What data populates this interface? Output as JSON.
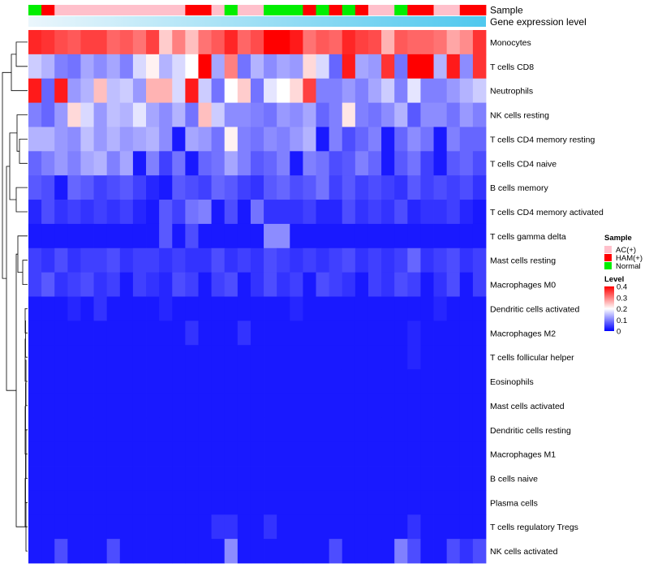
{
  "chart_data": {
    "type": "heatmap",
    "title": "",
    "annotation_rows": [
      {
        "label": "Sample",
        "type": "categorical"
      },
      {
        "label": "Gene expression level",
        "type": "gradient"
      }
    ],
    "sample_groups": [
      "N",
      "H",
      "A",
      "A",
      "A",
      "A",
      "A",
      "A",
      "A",
      "A",
      "A",
      "A",
      "H",
      "H",
      "A",
      "N",
      "A",
      "A",
      "N",
      "N",
      "N",
      "H",
      "N",
      "H",
      "N",
      "H",
      "A",
      "A",
      "N",
      "H",
      "H",
      "A",
      "A",
      "H",
      "H"
    ],
    "rows": [
      "Monocytes",
      "T cells CD8",
      "Neutrophils",
      "NK cells resting",
      "T cells CD4 memory resting",
      "T cells CD4 naive",
      "B cells memory",
      "T cells CD4 memory activated",
      "T cells gamma delta",
      "Mast cells resting",
      "Macrophages M0",
      "Dendritic cells activated",
      "Macrophages M2",
      "T cells follicular helper",
      "Eosinophils",
      "Mast cells activated",
      "Dendritic cells resting",
      "Macrophages M1",
      "B cells naive",
      "Plasma cells",
      "T cells regulatory  Tregs",
      "NK cells activated"
    ],
    "values": [
      [
        0.37,
        0.36,
        0.34,
        0.33,
        0.35,
        0.35,
        0.32,
        0.33,
        0.31,
        0.35,
        0.24,
        0.3,
        0.25,
        0.31,
        0.33,
        0.37,
        0.32,
        0.34,
        0.4,
        0.4,
        0.38,
        0.31,
        0.33,
        0.32,
        0.37,
        0.35,
        0.34,
        0.26,
        0.33,
        0.32,
        0.32,
        0.31,
        0.27,
        0.29,
        0.36
      ],
      [
        0.16,
        0.14,
        0.1,
        0.09,
        0.13,
        0.11,
        0.13,
        0.1,
        0.17,
        0.21,
        0.14,
        0.17,
        0.2,
        0.4,
        0.13,
        0.3,
        0.09,
        0.14,
        0.11,
        0.13,
        0.12,
        0.23,
        0.17,
        0.08,
        0.38,
        0.13,
        0.12,
        0.36,
        0.09,
        0.4,
        0.4,
        0.14,
        0.38,
        0.11,
        0.36
      ],
      [
        0.38,
        0.08,
        0.38,
        0.12,
        0.14,
        0.25,
        0.15,
        0.16,
        0.12,
        0.26,
        0.26,
        0.17,
        0.38,
        0.16,
        0.09,
        0.2,
        0.24,
        0.09,
        0.18,
        0.2,
        0.23,
        0.35,
        0.1,
        0.1,
        0.12,
        0.1,
        0.13,
        0.16,
        0.1,
        0.18,
        0.1,
        0.1,
        0.12,
        0.14,
        0.16
      ],
      [
        0.1,
        0.08,
        0.12,
        0.23,
        0.17,
        0.12,
        0.15,
        0.14,
        0.18,
        0.13,
        0.11,
        0.14,
        0.09,
        0.25,
        0.16,
        0.11,
        0.11,
        0.1,
        0.09,
        0.12,
        0.11,
        0.13,
        0.08,
        0.1,
        0.22,
        0.1,
        0.09,
        0.11,
        0.14,
        0.07,
        0.11,
        0.11,
        0.09,
        0.12,
        0.1
      ],
      [
        0.14,
        0.14,
        0.12,
        0.11,
        0.15,
        0.12,
        0.14,
        0.12,
        0.13,
        0.14,
        0.11,
        0.02,
        0.13,
        0.12,
        0.09,
        0.21,
        0.1,
        0.09,
        0.11,
        0.1,
        0.12,
        0.14,
        0.02,
        0.1,
        0.06,
        0.08,
        0.1,
        0.02,
        0.08,
        0.11,
        0.09,
        0.02,
        0.1,
        0.08,
        0.08
      ],
      [
        0.08,
        0.1,
        0.12,
        0.1,
        0.13,
        0.14,
        0.1,
        0.13,
        0.02,
        0.1,
        0.05,
        0.09,
        0.02,
        0.08,
        0.09,
        0.13,
        0.1,
        0.07,
        0.08,
        0.1,
        0.02,
        0.1,
        0.09,
        0.06,
        0.07,
        0.1,
        0.08,
        0.02,
        0.07,
        0.09,
        0.05,
        0.02,
        0.07,
        0.08,
        0.06
      ],
      [
        0.07,
        0.06,
        0.02,
        0.08,
        0.07,
        0.05,
        0.06,
        0.07,
        0.05,
        0.03,
        0.02,
        0.07,
        0.06,
        0.05,
        0.08,
        0.07,
        0.05,
        0.04,
        0.07,
        0.08,
        0.06,
        0.07,
        0.09,
        0.05,
        0.07,
        0.05,
        0.06,
        0.05,
        0.04,
        0.07,
        0.05,
        0.06,
        0.05,
        0.06,
        0.04
      ],
      [
        0.03,
        0.06,
        0.04,
        0.05,
        0.04,
        0.05,
        0.04,
        0.05,
        0.03,
        0.02,
        0.07,
        0.05,
        0.09,
        0.1,
        0.02,
        0.06,
        0.02,
        0.09,
        0.04,
        0.04,
        0.04,
        0.05,
        0.03,
        0.03,
        0.06,
        0.04,
        0.05,
        0.04,
        0.06,
        0.03,
        0.04,
        0.04,
        0.05,
        0.03,
        0.02
      ],
      [
        0.02,
        0.02,
        0.02,
        0.02,
        0.02,
        0.02,
        0.02,
        0.02,
        0.02,
        0.02,
        0.07,
        0.02,
        0.06,
        0.02,
        0.02,
        0.02,
        0.02,
        0.02,
        0.11,
        0.11,
        0.02,
        0.02,
        0.02,
        0.02,
        0.02,
        0.02,
        0.02,
        0.02,
        0.02,
        0.02,
        0.02,
        0.02,
        0.02,
        0.02,
        0.02
      ],
      [
        0.05,
        0.04,
        0.06,
        0.04,
        0.05,
        0.05,
        0.06,
        0.04,
        0.05,
        0.05,
        0.04,
        0.05,
        0.04,
        0.04,
        0.06,
        0.04,
        0.05,
        0.04,
        0.06,
        0.05,
        0.04,
        0.05,
        0.04,
        0.05,
        0.06,
        0.04,
        0.05,
        0.04,
        0.05,
        0.08,
        0.04,
        0.05,
        0.06,
        0.04,
        0.05
      ],
      [
        0.05,
        0.07,
        0.04,
        0.05,
        0.06,
        0.04,
        0.05,
        0.02,
        0.05,
        0.04,
        0.03,
        0.06,
        0.05,
        0.02,
        0.05,
        0.06,
        0.02,
        0.04,
        0.06,
        0.04,
        0.05,
        0.02,
        0.06,
        0.05,
        0.04,
        0.02,
        0.05,
        0.04,
        0.06,
        0.05,
        0.02,
        0.04,
        0.06,
        0.02,
        0.05
      ],
      [
        0.02,
        0.02,
        0.02,
        0.03,
        0.02,
        0.04,
        0.02,
        0.02,
        0.02,
        0.02,
        0.03,
        0.02,
        0.02,
        0.02,
        0.02,
        0.02,
        0.02,
        0.02,
        0.02,
        0.02,
        0.03,
        0.02,
        0.02,
        0.02,
        0.02,
        0.02,
        0.02,
        0.02,
        0.02,
        0.02,
        0.02,
        0.03,
        0.02,
        0.02,
        0.02
      ],
      [
        0.02,
        0.02,
        0.02,
        0.02,
        0.02,
        0.02,
        0.02,
        0.02,
        0.02,
        0.02,
        0.02,
        0.02,
        0.04,
        0.02,
        0.02,
        0.02,
        0.04,
        0.02,
        0.02,
        0.02,
        0.02,
        0.02,
        0.02,
        0.02,
        0.02,
        0.02,
        0.02,
        0.02,
        0.02,
        0.03,
        0.02,
        0.02,
        0.02,
        0.02,
        0.02
      ],
      [
        0.02,
        0.02,
        0.02,
        0.02,
        0.02,
        0.02,
        0.02,
        0.02,
        0.02,
        0.02,
        0.02,
        0.02,
        0.02,
        0.02,
        0.02,
        0.02,
        0.02,
        0.02,
        0.02,
        0.02,
        0.02,
        0.02,
        0.02,
        0.02,
        0.02,
        0.02,
        0.02,
        0.02,
        0.02,
        0.03,
        0.02,
        0.02,
        0.02,
        0.02,
        0.02
      ],
      [
        0.02,
        0.02,
        0.02,
        0.02,
        0.02,
        0.02,
        0.02,
        0.02,
        0.02,
        0.02,
        0.02,
        0.02,
        0.02,
        0.02,
        0.02,
        0.02,
        0.02,
        0.02,
        0.02,
        0.02,
        0.02,
        0.02,
        0.02,
        0.02,
        0.02,
        0.02,
        0.02,
        0.02,
        0.02,
        0.02,
        0.02,
        0.02,
        0.02,
        0.02,
        0.02
      ],
      [
        0.02,
        0.02,
        0.02,
        0.02,
        0.02,
        0.02,
        0.02,
        0.02,
        0.02,
        0.02,
        0.02,
        0.02,
        0.02,
        0.02,
        0.02,
        0.02,
        0.02,
        0.02,
        0.02,
        0.02,
        0.02,
        0.02,
        0.02,
        0.02,
        0.02,
        0.02,
        0.02,
        0.02,
        0.02,
        0.02,
        0.02,
        0.02,
        0.02,
        0.02,
        0.02
      ],
      [
        0.02,
        0.02,
        0.02,
        0.02,
        0.02,
        0.02,
        0.02,
        0.02,
        0.02,
        0.02,
        0.02,
        0.02,
        0.02,
        0.02,
        0.02,
        0.02,
        0.02,
        0.02,
        0.02,
        0.02,
        0.02,
        0.02,
        0.02,
        0.02,
        0.02,
        0.02,
        0.02,
        0.02,
        0.02,
        0.02,
        0.02,
        0.02,
        0.02,
        0.02,
        0.02
      ],
      [
        0.02,
        0.02,
        0.02,
        0.02,
        0.02,
        0.02,
        0.02,
        0.02,
        0.02,
        0.02,
        0.02,
        0.02,
        0.02,
        0.02,
        0.02,
        0.02,
        0.02,
        0.02,
        0.02,
        0.02,
        0.02,
        0.02,
        0.02,
        0.02,
        0.02,
        0.02,
        0.02,
        0.02,
        0.02,
        0.02,
        0.02,
        0.02,
        0.02,
        0.02,
        0.02
      ],
      [
        0.02,
        0.02,
        0.02,
        0.02,
        0.02,
        0.02,
        0.02,
        0.02,
        0.02,
        0.02,
        0.02,
        0.02,
        0.02,
        0.02,
        0.02,
        0.02,
        0.02,
        0.02,
        0.02,
        0.02,
        0.02,
        0.02,
        0.02,
        0.02,
        0.02,
        0.02,
        0.02,
        0.02,
        0.02,
        0.02,
        0.02,
        0.02,
        0.02,
        0.02,
        0.02
      ],
      [
        0.02,
        0.02,
        0.02,
        0.02,
        0.02,
        0.02,
        0.02,
        0.02,
        0.02,
        0.02,
        0.02,
        0.02,
        0.02,
        0.02,
        0.02,
        0.02,
        0.02,
        0.02,
        0.02,
        0.02,
        0.02,
        0.02,
        0.02,
        0.02,
        0.02,
        0.02,
        0.02,
        0.02,
        0.02,
        0.02,
        0.02,
        0.02,
        0.02,
        0.02,
        0.02
      ],
      [
        0.02,
        0.02,
        0.02,
        0.02,
        0.02,
        0.02,
        0.02,
        0.02,
        0.02,
        0.02,
        0.02,
        0.02,
        0.02,
        0.02,
        0.04,
        0.04,
        0.02,
        0.02,
        0.04,
        0.02,
        0.02,
        0.02,
        0.02,
        0.02,
        0.02,
        0.02,
        0.02,
        0.02,
        0.02,
        0.04,
        0.02,
        0.02,
        0.02,
        0.02,
        0.02
      ],
      [
        0.02,
        0.02,
        0.06,
        0.02,
        0.02,
        0.02,
        0.06,
        0.02,
        0.02,
        0.02,
        0.02,
        0.02,
        0.02,
        0.02,
        0.02,
        0.11,
        0.02,
        0.02,
        0.02,
        0.02,
        0.02,
        0.02,
        0.02,
        0.06,
        0.02,
        0.02,
        0.02,
        0.02,
        0.1,
        0.06,
        0.02,
        0.02,
        0.06,
        0.04,
        0.06
      ]
    ],
    "legend": {
      "sample": {
        "title": "Sample",
        "items": [
          {
            "key": "A",
            "label": "AC(+)",
            "color": "#ffc0cb"
          },
          {
            "key": "H",
            "label": "HAM(+)",
            "color": "#ff0000"
          },
          {
            "key": "N",
            "label": "Normal",
            "color": "#00ee00"
          }
        ]
      },
      "level": {
        "title": "Level",
        "ticks": [
          "0.4",
          "0.3",
          "0.2",
          "0.1",
          "0"
        ],
        "tick_values": [
          0.4,
          0.3,
          0.2,
          0.1,
          0
        ],
        "range": [
          0,
          0.4
        ]
      }
    },
    "colors": {
      "low": "#0000ff",
      "mid": "#ffffff",
      "high": "#ff0000",
      "expr_gradient_left": "#ebf6fc",
      "expr_gradient_right": "#4fc8ee",
      "dendrogram": "#000000"
    }
  }
}
